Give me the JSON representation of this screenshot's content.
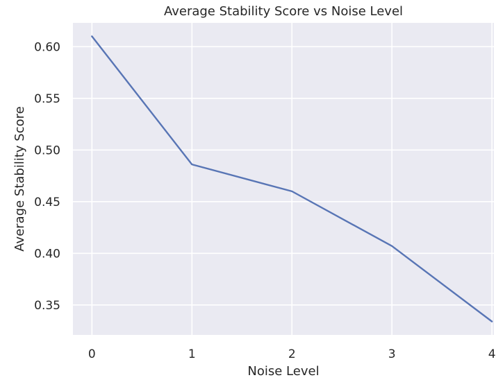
{
  "chart_data": {
    "type": "line",
    "title": "Average Stability Score vs Noise Level",
    "xlabel": "Noise Level",
    "ylabel": "Average Stability Score",
    "x": [
      0,
      1,
      2,
      3,
      4
    ],
    "series": [
      {
        "values": [
          0.61,
          0.486,
          0.46,
          0.407,
          0.334
        ],
        "color": "#5875b5"
      }
    ],
    "xticks": [
      "0",
      "1",
      "2",
      "3",
      "4"
    ],
    "yticks": [
      "0.35",
      "0.40",
      "0.45",
      "0.50",
      "0.55",
      "0.60"
    ],
    "xlim": [
      -0.19,
      4.02
    ],
    "ylim": [
      0.321,
      0.623
    ],
    "grid": true,
    "background_color": "#eaeaf2",
    "grid_color": "#ffffff"
  }
}
